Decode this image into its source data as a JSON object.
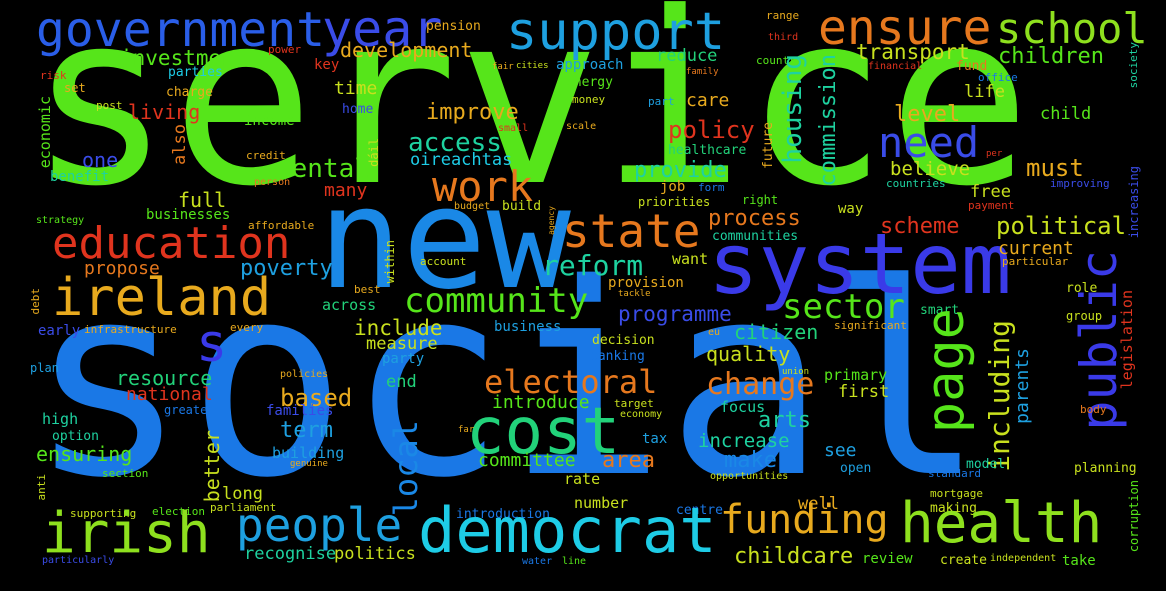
{
  "colors": {
    "background": "#000000",
    "green": "#56e51a",
    "lime": "#8ee01e",
    "blue": "#1a78e6",
    "sky": "#1ea0e0",
    "indigo": "#3a3ae8",
    "red": "#e0341e",
    "orange": "#e6781e",
    "amber": "#e8aa1e",
    "yellow": "#c8e01e",
    "teal": "#1ed2a0",
    "cyan": "#1ecce6",
    "aquagreen": "#22d27a"
  },
  "words": {
    "service": "service",
    "social": "social",
    "new": "new",
    "system": "system",
    "s": "s",
    "government": "government",
    "year": "year",
    "support": "support",
    "ensure": "ensure",
    "school": "school",
    "investment": "investment",
    "development": "development",
    "reduce": "reduce",
    "transport": "transport",
    "children": "children",
    "pension": "pension",
    "range": "range",
    "third": "third",
    "power": "power",
    "parties": "parties",
    "key": "key",
    "fair": "fair",
    "cities": "cities",
    "approach": "approach",
    "family": "family",
    "country": "country",
    "financial": "financial",
    "fund": "fund",
    "office": "office",
    "society": "society",
    "risk": "risk",
    "set": "set",
    "charge": "charge",
    "economic": "economic",
    "time": "time",
    "energy": "energy",
    "home": "home",
    "money": "money",
    "part": "part",
    "care": "care",
    "level": "level",
    "life": "life",
    "child": "child",
    "post": "post",
    "living": "living",
    "improve": "improve",
    "small": "small",
    "scale": "scale",
    "income": "income",
    "dail": "dáil",
    "housing": "housing",
    "future": "future",
    "also": "also",
    "access": "access",
    "policy": "policy",
    "healthcare": "healthcare",
    "need": "need",
    "credit": "credit",
    "oireachtas": "oireachtas",
    "one": "one",
    "mental": "mental",
    "provide": "provide",
    "believe": "believe",
    "must": "must",
    "per": "per",
    "benefit": "benefit",
    "person": "person",
    "form": "form",
    "countries": "countries",
    "improving": "improving",
    "work": "work",
    "job": "job",
    "many": "many",
    "right": "right",
    "free": "free",
    "full": "full",
    "commission": "commission",
    "priorities": "priorities",
    "payment": "payment",
    "increasing": "increasing",
    "strategy": "strategy",
    "budget": "budget",
    "build": "build",
    "agency": "agency",
    "way": "way",
    "businesses": "businesses",
    "affordable": "affordable",
    "state": "state",
    "process": "process",
    "scheme": "scheme",
    "political": "political",
    "education": "education",
    "communities": "communities",
    "current": "current",
    "propose": "propose",
    "want": "want",
    "particular": "particular",
    "within": "within",
    "account": "account",
    "poverty": "poverty",
    "reform": "reform",
    "ireland": "ireland",
    "debt": "debt",
    "best": "best",
    "provision": "provision",
    "tackle": "tackle",
    "community": "community",
    "sector": "sector",
    "role": "role",
    "programme": "programme",
    "smart": "smart",
    "across": "across",
    "eu": "eu",
    "group": "group",
    "early": "early",
    "infrastructure": "infrastructure",
    "every": "every",
    "business": "business",
    "include": "include",
    "citizen": "citizen",
    "significant": "significant",
    "legislation": "legislation",
    "decision": "decision",
    "measure": "measure",
    "page": "page",
    "public": "public",
    "plan": "plan",
    "quality": "quality",
    "including": "including",
    "party": "party",
    "banking": "banking",
    "union": "union",
    "parents": "parents",
    "resource": "resource",
    "electoral": "electoral",
    "primary": "primary",
    "policies": "policies",
    "end": "end",
    "change": "change",
    "national": "national",
    "first": "first",
    "based": "based",
    "target": "target",
    "high": "high",
    "greater": "greater",
    "families": "families",
    "introduce": "introduce",
    "economy": "economy",
    "body": "body",
    "focus": "focus",
    "arts": "arts",
    "cost": "cost",
    "term": "term",
    "option": "option",
    "far": "far",
    "tax": "tax",
    "increase": "increase",
    "see": "see",
    "ensuring": "ensuring",
    "building": "building",
    "committee": "committee",
    "area": "area",
    "make": "make",
    "open": "open",
    "standard": "standard",
    "model": "model",
    "planning": "planning",
    "anti": "anti",
    "section": "section",
    "genuine": "genuine",
    "better": "better",
    "local": "local",
    "opportunities": "opportunities",
    "long": "long",
    "rate": "rate",
    "mortgage": "mortgage",
    "corruption": "corruption",
    "supporting": "supporting",
    "election": "election",
    "parliament": "parliament",
    "introduction": "introduction",
    "centre": "centre",
    "well": "well",
    "making": "making",
    "number": "number",
    "irish": "irish",
    "people": "people",
    "democrat": "democrat",
    "funding": "funding",
    "health": "health",
    "recognise": "recognise",
    "politics": "politics",
    "childcare": "childcare",
    "review": "review",
    "create": "create",
    "independent": "independent",
    "take": "take",
    "particularly": "particularly",
    "water": "water",
    "line": "line"
  }
}
